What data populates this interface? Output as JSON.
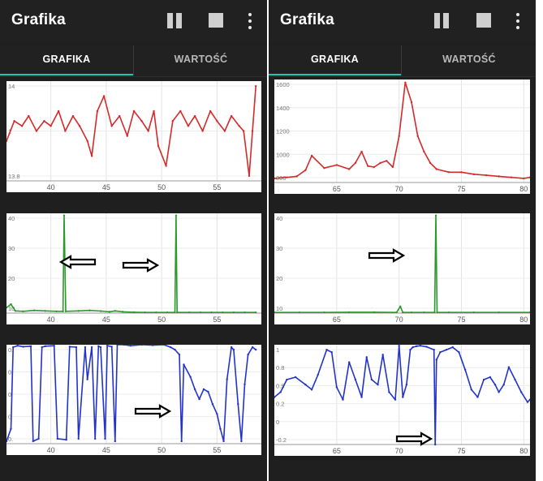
{
  "screens": [
    {
      "app_title": "Grafika",
      "tabs": [
        {
          "label": "GRAFIKA",
          "active": true
        },
        {
          "label": "WARTOŚĆ",
          "active": false
        }
      ],
      "icons": [
        "pause-icon",
        "stop-icon",
        "more-vert-icon"
      ],
      "charts": [
        {
          "color": "#d42a2a",
          "xlim": [
            36,
            59
          ],
          "ylim": [
            13.7,
            14.7
          ],
          "xticks": [
            "40",
            "45",
            "50",
            "55"
          ],
          "yticks": [
            "14",
            "1",
            "13.8"
          ]
        },
        {
          "color": "#2a9a2a",
          "xlim": [
            36,
            59
          ],
          "ylim": [
            0,
            450
          ],
          "xticks": [
            "40",
            "45",
            "50",
            "55"
          ],
          "yticks": [
            "40",
            "30",
            "20",
            "10"
          ]
        },
        {
          "color": "#2233cc",
          "xlim": [
            36,
            59
          ],
          "ylim": [
            -1,
            1
          ],
          "xticks": [
            "40",
            "45",
            "50",
            "55"
          ],
          "yticks": [
            "0.",
            "0",
            "0",
            "0",
            "0."
          ]
        }
      ]
    },
    {
      "app_title": "Grafika",
      "tabs": [
        {
          "label": "GRAFIKA",
          "active": true
        },
        {
          "label": "WARTOŚĆ",
          "active": false
        }
      ],
      "icons": [
        "pause-icon",
        "stop-icon",
        "more-vert-icon"
      ],
      "charts": [
        {
          "color": "#d42a2a",
          "xlim": [
            60,
            80.5
          ],
          "ylim": [
            600,
            1600
          ],
          "xticks": [
            "65",
            "70",
            "75",
            "80"
          ],
          "yticks": [
            "1600",
            "1400",
            "1200",
            "1000",
            "800"
          ]
        },
        {
          "color": "#2a9a2a",
          "xlim": [
            60,
            80.5
          ],
          "ylim": [
            0,
            450
          ],
          "xticks": [
            "65",
            "70",
            "75",
            "80"
          ],
          "yticks": [
            "40",
            "30",
            "20",
            "10"
          ]
        },
        {
          "color": "#2233cc",
          "xlim": [
            60,
            80.5
          ],
          "ylim": [
            -1,
            1
          ],
          "xticks": [
            "65",
            "70",
            "75",
            "80"
          ],
          "yticks": [
            "1",
            "0.8",
            "0.5",
            "0.2",
            "0",
            "-0.2"
          ]
        }
      ]
    }
  ],
  "chart_data": [
    {
      "type": "line",
      "x": [
        36,
        36.7,
        37.4,
        38,
        38.7,
        39.4,
        40,
        40.7,
        41.3,
        42,
        42.6,
        43.3,
        43.7,
        44.2,
        44.8,
        45.5,
        46.2,
        46.9,
        47.5,
        48.2,
        48.8,
        49.3,
        49.7,
        50.4,
        51,
        51.7,
        52.4,
        53,
        53.7,
        54.4,
        55,
        55.7,
        56.3,
        57,
        57.4,
        57.9,
        58.2,
        58.5
      ],
      "y": [
        14.1,
        14.3,
        14.25,
        14.35,
        14.2,
        14.3,
        14.25,
        14.4,
        14.2,
        14.35,
        14.25,
        14.1,
        13.95,
        14.4,
        14.55,
        14.25,
        14.35,
        14.15,
        14.4,
        14.3,
        14.2,
        14.4,
        14.05,
        13.85,
        14.3,
        14.4,
        14.25,
        14.35,
        14.2,
        14.4,
        14.3,
        14.2,
        14.35,
        14.25,
        14.2,
        13.75,
        14.2,
        14.65
      ]
    },
    {
      "type": "line",
      "x": [
        36,
        36.4,
        36.8,
        37.5,
        38.5,
        39.5,
        40.5,
        41.1,
        41.2,
        41.35,
        42.5,
        43.5,
        44.5,
        45.3,
        45.8,
        46.5,
        47.5,
        48.5,
        49.5,
        50.5,
        51.2,
        51.3,
        51.4,
        52.5,
        53.5,
        54.5,
        55.5,
        56.5,
        57.5,
        58.5
      ],
      "y": [
        25,
        40,
        10,
        8,
        12,
        10,
        8,
        8,
        440,
        8,
        10,
        12,
        9,
        6,
        10,
        6,
        4,
        3,
        3,
        3,
        3,
        440,
        3,
        3,
        3,
        3,
        3,
        3,
        3,
        3
      ]
    },
    {
      "type": "line",
      "x": [
        36,
        36.4,
        36.6,
        37,
        37.5,
        38.2,
        38.4,
        38.9,
        39.2,
        39.5,
        40.3,
        40.6,
        41.4,
        41.7,
        42.3,
        42.5,
        43.1,
        43.3,
        43.7,
        44,
        44.3,
        44.5,
        44.9,
        45.1,
        45.5,
        45.8,
        46,
        46.6,
        47.2,
        48.2,
        49.2,
        50.2,
        50.8,
        51.2,
        51.6,
        51.8,
        52.0,
        52.6,
        53,
        53.4,
        53.8,
        54.2,
        54.6,
        55,
        55.3,
        55.6,
        55.9,
        56.3,
        56.5,
        56.9,
        57.2,
        57.5,
        57.8,
        58.2,
        58.5
      ],
      "y": [
        -0.95,
        -0.7,
        0.95,
        0.98,
        0.96,
        0.97,
        -0.95,
        -0.9,
        0.95,
        0.97,
        0.98,
        -0.9,
        -0.92,
        0.96,
        0.95,
        -0.9,
        0.95,
        0.3,
        0.95,
        -0.9,
        0.97,
        0.95,
        -0.9,
        0.98,
        0.96,
        -0.95,
        1,
        1,
        0.98,
        1,
        0.99,
        1,
        0.95,
        0.9,
        0.8,
        -0.95,
        0.6,
        0.35,
        0.1,
        -0.1,
        0.1,
        0.05,
        -0.2,
        -0.4,
        -0.7,
        -0.95,
        0.3,
        0.95,
        0.9,
        -0.2,
        -0.95,
        0.2,
        0.8,
        0.95,
        0.9
      ]
    },
    {
      "type": "line",
      "x": [
        60,
        61,
        61.8,
        62.5,
        63,
        64,
        65,
        66,
        66.5,
        67,
        67.5,
        68,
        68.5,
        69,
        69.5,
        70,
        70.5,
        71,
        71.5,
        72,
        72.5,
        73,
        74,
        75,
        76,
        77,
        78,
        79,
        80,
        80.5
      ],
      "y": [
        640,
        650,
        660,
        720,
        860,
        740,
        770,
        730,
        790,
        900,
        760,
        750,
        790,
        810,
        750,
        1050,
        1570,
        1380,
        1050,
        900,
        790,
        730,
        700,
        700,
        680,
        670,
        660,
        650,
        640,
        650
      ]
    },
    {
      "type": "line",
      "x": [
        60,
        62,
        64,
        66,
        68,
        69.8,
        70.1,
        70.3,
        71,
        72,
        72.85,
        72.95,
        73.05,
        74,
        76,
        78,
        80.5
      ],
      "y": [
        3,
        3,
        3,
        4,
        4,
        3,
        30,
        3,
        3,
        3,
        3,
        440,
        3,
        3,
        3,
        3,
        3
      ]
    },
    {
      "type": "line",
      "x": [
        60,
        60.5,
        61,
        61.7,
        62.5,
        63,
        63.5,
        64.2,
        64.6,
        65,
        65.5,
        66,
        66.5,
        67,
        67.4,
        67.8,
        68.3,
        68.7,
        69.2,
        69.7,
        70,
        70.3,
        70.6,
        70.9,
        71.1,
        71.4,
        71.7,
        72.2,
        72.8,
        72.9,
        73,
        73.3,
        73.8,
        74.3,
        74.8,
        75.3,
        75.8,
        76.3,
        76.8,
        77.3,
        77.7,
        78,
        78.4,
        78.8,
        79.3,
        79.8,
        80.3,
        80.5
      ],
      "y": [
        -0.05,
        0.05,
        0.3,
        0.35,
        0.2,
        0.1,
        0.4,
        0.9,
        0.85,
        0.15,
        -0.1,
        0.65,
        0.3,
        -0.05,
        0.75,
        0.3,
        0.2,
        0.8,
        0.05,
        -0.1,
        0.98,
        -0.05,
        0.2,
        0.9,
        0.95,
        0.97,
        0.98,
        0.96,
        0.9,
        -1,
        0.7,
        0.85,
        0.9,
        0.95,
        0.85,
        0.5,
        0.1,
        -0.05,
        0.3,
        0.35,
        0.2,
        0.05,
        0.2,
        0.55,
        0.3,
        0.05,
        -0.15,
        -0.1
      ]
    }
  ],
  "annotations": {
    "arrow_color": "#000000"
  }
}
